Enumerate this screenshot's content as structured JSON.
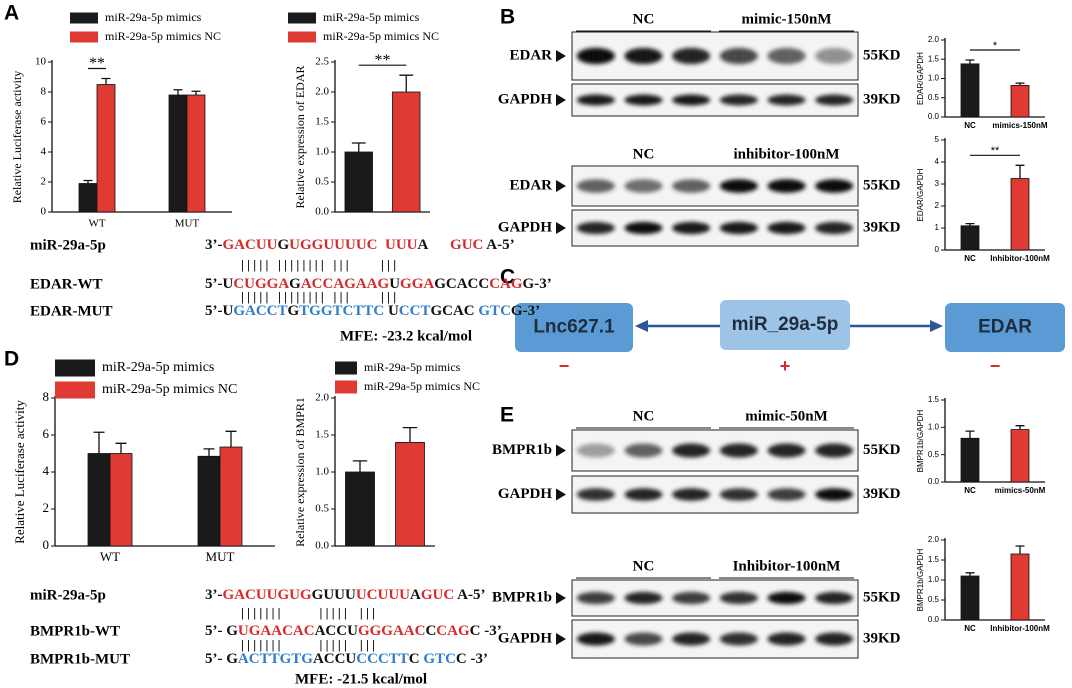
{
  "panel_letters": [
    "A",
    "B",
    "C",
    "D",
    "E"
  ],
  "chart_data": [
    {
      "type": "bar",
      "y_label": "Relative Luciferase activity",
      "categories": [
        "WT",
        "MUT"
      ],
      "series": [
        {
          "name": "miR-29a-5p mimics",
          "color": "#1a1a1a",
          "values": [
            1.9,
            7.8
          ],
          "errors": [
            0.2,
            0.35
          ]
        },
        {
          "name": "miR-29a-5p mimics NC",
          "color": "#e03a34",
          "values": [
            8.5,
            7.8
          ],
          "errors": [
            0.4,
            0.25
          ]
        }
      ],
      "ylim": [
        0,
        10
      ],
      "yticks": [
        0,
        2,
        4,
        6,
        8,
        10
      ],
      "annotation": "**"
    },
    {
      "type": "bar",
      "y_label": "Relative expression of EDAR",
      "categories": [
        null
      ],
      "series": [
        {
          "name": "miR-29a-5p mimics",
          "color": "#1a1a1a",
          "values": [
            1.0
          ],
          "errors": [
            0.15
          ]
        },
        {
          "name": "miR-29a-5p mimics NC",
          "color": "#e03a34",
          "values": [
            2.0
          ],
          "errors": [
            0.28
          ]
        }
      ],
      "ylim": [
        0,
        2.5
      ],
      "yticks": [
        {
          "value": 0,
          "label": "0.0"
        },
        0.5,
        {
          "value": 1,
          "label": "1.0"
        },
        1.5,
        {
          "value": 2,
          "label": "2.0"
        },
        2.5
      ],
      "annotation": "**"
    },
    {
      "type": "bar",
      "y_label": "EDAR/GAPDH",
      "categories": [
        "NC",
        "mimics-150nM"
      ],
      "values": [
        1.38,
        0.82
      ],
      "errors": [
        0.1,
        0.06
      ],
      "colors": [
        "#1a1a1a",
        "#e03a34"
      ],
      "ylim": [
        0,
        2
      ],
      "yticks": [
        {
          "value": 0,
          "label": "0.0"
        },
        0.5,
        {
          "value": 1,
          "label": "1.0"
        },
        1.5,
        {
          "value": 2,
          "label": "2.0"
        }
      ],
      "annotation": "*"
    },
    {
      "type": "bar",
      "y_label": "EDAR/GAPDH",
      "categories": [
        "NC",
        "Inhibitor-100nM"
      ],
      "values": [
        1.1,
        3.25
      ],
      "errors": [
        0.1,
        0.6
      ],
      "colors": [
        "#1a1a1a",
        "#e03a34"
      ],
      "ylim": [
        0,
        5
      ],
      "yticks": [
        0,
        1,
        2,
        3,
        4,
        5
      ],
      "annotation": "**"
    },
    {
      "type": "bar",
      "y_label": "Relative Luciferase activity",
      "categories": [
        "WT",
        "MUT"
      ],
      "series": [
        {
          "name": "miR-29a-5p mimics",
          "color": "#1a1a1a",
          "values": [
            5.0,
            4.85
          ],
          "errors": [
            1.15,
            0.4
          ]
        },
        {
          "name": "miR-29a-5p mimics NC",
          "color": "#e03a34",
          "values": [
            5.0,
            5.35
          ],
          "errors": [
            0.55,
            0.85
          ]
        }
      ],
      "ylim": [
        0,
        8
      ],
      "yticks": [
        0,
        2,
        4,
        6,
        8
      ]
    },
    {
      "type": "bar",
      "y_label": "Relative expression of BMPR1",
      "categories": [
        null
      ],
      "series": [
        {
          "name": "miR-29a-5p mimics",
          "color": "#1a1a1a",
          "values": [
            1.0
          ],
          "errors": [
            0.15
          ]
        },
        {
          "name": "miR-29a-5p mimics NC",
          "color": "#e03a34",
          "values": [
            1.4
          ],
          "errors": [
            0.2
          ]
        }
      ],
      "ylim": [
        0,
        2
      ],
      "yticks": [
        {
          "value": 0,
          "label": "0.0"
        },
        0.5,
        {
          "value": 1,
          "label": "1.0"
        },
        1.5,
        {
          "value": 2,
          "label": "2.0"
        }
      ]
    },
    {
      "type": "bar",
      "y_label": "BMPR1b/GAPDH",
      "categories": [
        "NC",
        "mimics-50nM"
      ],
      "values": [
        0.8,
        0.96
      ],
      "errors": [
        0.13,
        0.07
      ],
      "colors": [
        "#1a1a1a",
        "#e03a34"
      ],
      "ylim": [
        0,
        1.5
      ],
      "yticks": [
        {
          "value": 0,
          "label": "0.0"
        },
        0.5,
        {
          "value": 1,
          "label": "1.0"
        },
        1.5
      ]
    },
    {
      "type": "bar",
      "y_label": "BMPR1b/GAPDH",
      "categories": [
        "NC",
        "Inhibitor-100nM"
      ],
      "values": [
        1.1,
        1.65
      ],
      "errors": [
        0.08,
        0.2
      ],
      "colors": [
        "#1a1a1a",
        "#e03a34"
      ],
      "ylim": [
        0,
        2
      ],
      "yticks": [
        {
          "value": 0,
          "label": "0.0"
        },
        0.5,
        {
          "value": 1,
          "label": "1.0"
        },
        1.5,
        {
          "value": 2,
          "label": "2.0"
        }
      ]
    }
  ],
  "blots": [
    {
      "groups": [
        "NC",
        "mimic-150nM"
      ],
      "rows": [
        {
          "label": "EDAR",
          "size": "55KD"
        },
        {
          "label": "GAPDH",
          "size": "39KD"
        }
      ]
    },
    {
      "groups": [
        "NC",
        "inhibitor-100nM"
      ],
      "rows": [
        {
          "label": "EDAR",
          "size": "55KD"
        },
        {
          "label": "GAPDH",
          "size": "39KD"
        }
      ]
    },
    {
      "groups": [
        "NC",
        "mimic-50nM"
      ],
      "rows": [
        {
          "label": "BMPR1b",
          "size": "55KD"
        },
        {
          "label": "GAPDH",
          "size": "39KD"
        }
      ]
    },
    {
      "groups": [
        "NC",
        "Inhibitor-100nM"
      ],
      "rows": [
        {
          "label": "BMPR1b",
          "size": "55KD"
        },
        {
          "label": "GAPDH",
          "size": "39KD"
        }
      ]
    }
  ],
  "diagram": {
    "nodes": [
      {
        "label": "Lnc627.1",
        "sign": "−"
      },
      {
        "label": "miR_29a-5p",
        "sign": "+"
      },
      {
        "label": "EDAR",
        "sign": "−"
      }
    ]
  },
  "sequences": [
    {
      "rows": [
        {
          "label": "miR-29a-5p",
          "segments": [
            {
              "text": "3’-",
              "color": "#111"
            },
            {
              "text": "GACUU",
              "color": "#d62b2b"
            },
            {
              "text": "G",
              "color": "#111"
            },
            {
              "text": "UGGUUUUC",
              "color": "#d62b2b"
            },
            {
              "text": "  ",
              "color": "#111"
            },
            {
              "text": "UUU",
              "color": "#d62b2b"
            },
            {
              "text": "A      ",
              "color": "#111"
            },
            {
              "text": "GUC",
              "color": "#d62b2b"
            },
            {
              "text": " A-5’",
              "color": "#111"
            }
          ]
        },
        {
          "label": "EDAR-WT",
          "segments": [
            {
              "text": "5’-U",
              "color": "#111"
            },
            {
              "text": "CUGGA",
              "color": "#d62b2b"
            },
            {
              "text": "G",
              "color": "#111"
            },
            {
              "text": "ACCAGAAG",
              "color": "#d62b2b"
            },
            {
              "text": "U",
              "color": "#111"
            },
            {
              "text": "GGA",
              "color": "#d62b2b"
            },
            {
              "text": "GCACC",
              "color": "#111"
            },
            {
              "text": "CAG",
              "color": "#d62b2b"
            },
            {
              "text": "G-3’",
              "color": "#111"
            }
          ]
        },
        {
          "label": "EDAR-MUT",
          "segments": [
            {
              "text": "5’-U",
              "color": "#111"
            },
            {
              "text": "GACCT",
              "color": "#2e7ec9"
            },
            {
              "text": "G",
              "color": "#111"
            },
            {
              "text": "TGGTCTTC",
              "color": "#2e7ec9"
            },
            {
              "text": " U",
              "color": "#111"
            },
            {
              "text": "CCT",
              "color": "#2e7ec9"
            },
            {
              "text": "GCAC ",
              "color": "#111"
            },
            {
              "text": "GTC",
              "color": "#2e7ec9"
            },
            {
              "text": "G-3’",
              "color": "#111"
            }
          ]
        }
      ],
      "pairs": [
        "| | | | |   | | | | | | | |   | | |          | | |",
        "| | | | |   | | | | | | | |   | | |          | | |"
      ],
      "mfe": "MFE: -23.2 kcal/mol"
    },
    {
      "rows": [
        {
          "label": "miR-29a-5p",
          "segments": [
            {
              "text": "3’-",
              "color": "#111"
            },
            {
              "text": "GACUUGUG",
              "color": "#d62b2b"
            },
            {
              "text": "GUUU",
              "color": "#111"
            },
            {
              "text": "UCUUU",
              "color": "#d62b2b"
            },
            {
              "text": "A",
              "color": "#111"
            },
            {
              "text": "GUC",
              "color": "#d62b2b"
            },
            {
              "text": " A-5’",
              "color": "#111"
            }
          ]
        },
        {
          "label": "BMPR1b-WT",
          "segments": [
            {
              "text": "5’- G",
              "color": "#111"
            },
            {
              "text": "UGAACAC",
              "color": "#d62b2b"
            },
            {
              "text": "ACCU",
              "color": "#111"
            },
            {
              "text": "GGGAAC",
              "color": "#d62b2b"
            },
            {
              "text": "C",
              "color": "#111"
            },
            {
              "text": "CAG",
              "color": "#d62b2b"
            },
            {
              "text": "C -3’",
              "color": "#111"
            }
          ]
        },
        {
          "label": "BMPR1b-MUT",
          "segments": [
            {
              "text": "5’- G",
              "color": "#111"
            },
            {
              "text": "ACTTGTG",
              "color": "#2e7ec9"
            },
            {
              "text": "ACCU",
              "color": "#111"
            },
            {
              "text": "CCCTT",
              "color": "#2e7ec9"
            },
            {
              "text": "C ",
              "color": "#111"
            },
            {
              "text": "GTC",
              "color": "#2e7ec9"
            },
            {
              "text": "C -3’",
              "color": "#111"
            }
          ]
        }
      ],
      "pairs": [
        "| | | | | | |            | | | | |    | | |",
        "| | | | | | |            | | | | |    | | |"
      ],
      "mfe": "MFE: -21.5 kcal/mol"
    }
  ]
}
